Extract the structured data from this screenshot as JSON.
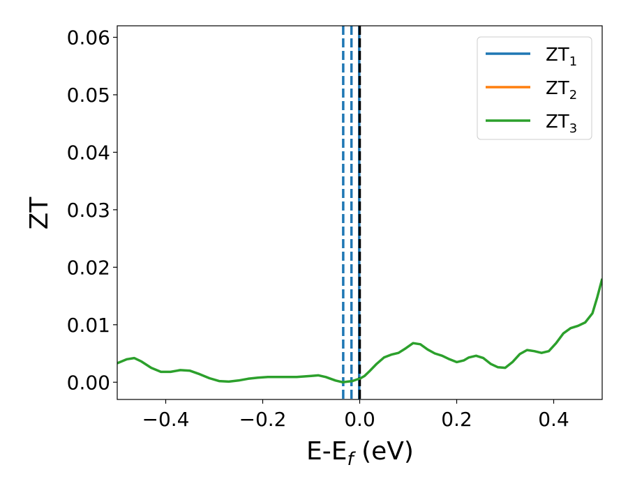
{
  "chart_data": {
    "type": "line",
    "xlabel": "E-E",
    "xlabel_subscript": "f",
    "xlabel_unit": " (eV)",
    "ylabel": "ZT",
    "xlim": [
      -0.5,
      0.5
    ],
    "ylim": [
      -0.003,
      0.062
    ],
    "xticks": [
      -0.4,
      -0.2,
      0.0,
      0.2,
      0.4
    ],
    "xtick_labels": [
      "−0.4",
      "−0.2",
      "0.0",
      "0.2",
      "0.4"
    ],
    "yticks": [
      0.0,
      0.01,
      0.02,
      0.03,
      0.04,
      0.05,
      0.06
    ],
    "ytick_labels": [
      "0.00",
      "0.01",
      "0.02",
      "0.03",
      "0.04",
      "0.05",
      "0.06"
    ],
    "grid": false,
    "legend_position": "top-right",
    "series": [
      {
        "name": "ZT",
        "subscript": "1",
        "color": "#1f77b4",
        "x": [],
        "y": []
      },
      {
        "name": "ZT",
        "subscript": "2",
        "color": "#ff7f0e",
        "x": [],
        "y": []
      },
      {
        "name": "ZT",
        "subscript": "3",
        "color": "#2ca02c",
        "x": [
          -0.5,
          -0.48,
          -0.465,
          -0.45,
          -0.43,
          -0.41,
          -0.39,
          -0.37,
          -0.35,
          -0.33,
          -0.31,
          -0.29,
          -0.27,
          -0.25,
          -0.23,
          -0.21,
          -0.19,
          -0.16,
          -0.13,
          -0.1,
          -0.085,
          -0.07,
          -0.05,
          -0.035,
          -0.025,
          -0.015,
          -0.005,
          0.0,
          0.01,
          0.02,
          0.035,
          0.05,
          0.065,
          0.08,
          0.095,
          0.11,
          0.125,
          0.14,
          0.155,
          0.17,
          0.185,
          0.2,
          0.215,
          0.225,
          0.24,
          0.255,
          0.27,
          0.285,
          0.3,
          0.315,
          0.33,
          0.345,
          0.36,
          0.375,
          0.39,
          0.405,
          0.42,
          0.435,
          0.45,
          0.465,
          0.48,
          0.49,
          0.5
        ],
        "y": [
          0.0033,
          0.004,
          0.0042,
          0.0036,
          0.0025,
          0.0018,
          0.0018,
          0.0021,
          0.002,
          0.0014,
          0.0007,
          0.0002,
          0.0001,
          0.0003,
          0.0006,
          0.0008,
          0.0009,
          0.0009,
          0.0009,
          0.0011,
          0.0012,
          0.0009,
          0.0003,
          0.0,
          0.0001,
          0.0002,
          0.0005,
          0.0006,
          0.0011,
          0.0019,
          0.0032,
          0.0043,
          0.0048,
          0.0051,
          0.0059,
          0.0068,
          0.0066,
          0.0057,
          0.005,
          0.0046,
          0.004,
          0.0035,
          0.0038,
          0.0043,
          0.0046,
          0.0042,
          0.0032,
          0.0026,
          0.0025,
          0.0035,
          0.0049,
          0.0056,
          0.0054,
          0.0051,
          0.0054,
          0.0068,
          0.0085,
          0.0094,
          0.0098,
          0.0104,
          0.012,
          0.0148,
          0.018
        ]
      }
    ],
    "vertical_lines": [
      {
        "x": -0.034,
        "color": "#1f77b4",
        "style": "dashed"
      },
      {
        "x": -0.017,
        "color": "#1f77b4",
        "style": "dashed"
      },
      {
        "x": -0.001,
        "color": "#1f77b4",
        "style": "solid"
      },
      {
        "x": 0.0,
        "color": "#000000",
        "style": "dashed"
      }
    ]
  }
}
